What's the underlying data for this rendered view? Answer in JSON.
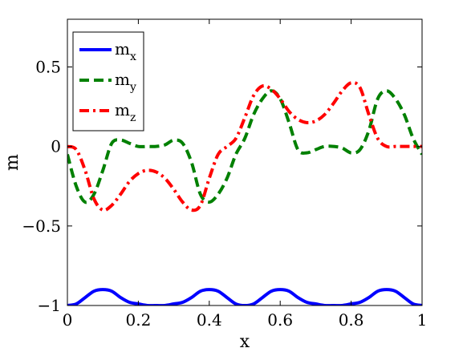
{
  "chart_data": {
    "type": "line",
    "xlabel": "x",
    "ylabel": "m",
    "xlim": [
      0,
      1
    ],
    "ylim": [
      -1,
      0.8
    ],
    "xticks": [
      0,
      0.2,
      0.4,
      0.6,
      0.8,
      1
    ],
    "xtick_labels": [
      "0",
      "0.2",
      "0.4",
      "0.6",
      "0.8",
      "1"
    ],
    "yticks": [
      -1,
      -0.5,
      0,
      0.5
    ],
    "ytick_labels": [
      "−1",
      "−0.5",
      "0",
      "0.5"
    ],
    "grid": false,
    "legend_position": "top-left",
    "series": [
      {
        "name": "m",
        "subscript": "x",
        "color": "#0000ff",
        "style": "solid",
        "x": [
          0,
          0.025,
          0.05,
          0.075,
          0.1,
          0.125,
          0.15,
          0.175,
          0.2,
          0.225,
          0.25,
          0.275,
          0.3,
          0.325,
          0.35,
          0.375,
          0.4,
          0.425,
          0.45,
          0.475,
          0.5,
          0.525,
          0.55,
          0.575,
          0.6,
          0.625,
          0.65,
          0.675,
          0.7,
          0.725,
          0.75,
          0.775,
          0.8,
          0.825,
          0.85,
          0.875,
          0.9,
          0.925,
          0.95,
          0.975,
          1
        ],
        "y": [
          -1,
          -0.99,
          -0.95,
          -0.91,
          -0.9,
          -0.91,
          -0.95,
          -0.98,
          -0.99,
          -1,
          -1,
          -1,
          -0.99,
          -0.98,
          -0.95,
          -0.91,
          -0.9,
          -0.91,
          -0.95,
          -0.99,
          -1,
          -0.99,
          -0.95,
          -0.91,
          -0.9,
          -0.91,
          -0.95,
          -0.98,
          -0.99,
          -1,
          -1,
          -1,
          -0.99,
          -0.98,
          -0.95,
          -0.91,
          -0.9,
          -0.91,
          -0.95,
          -0.99,
          -1
        ]
      },
      {
        "name": "m",
        "subscript": "y",
        "color": "#008000",
        "style": "dashed",
        "x": [
          0,
          0.025,
          0.05,
          0.075,
          0.1,
          0.125,
          0.15,
          0.175,
          0.2,
          0.225,
          0.25,
          0.275,
          0.3,
          0.325,
          0.35,
          0.375,
          0.4,
          0.425,
          0.45,
          0.475,
          0.5,
          0.525,
          0.55,
          0.575,
          0.6,
          0.625,
          0.65,
          0.675,
          0.7,
          0.725,
          0.75,
          0.775,
          0.8,
          0.825,
          0.85,
          0.875,
          0.9,
          0.925,
          0.95,
          0.975,
          1
        ],
        "y": [
          -0.05,
          -0.25,
          -0.35,
          -0.3,
          -0.15,
          0.02,
          0.04,
          0.02,
          0,
          0,
          0,
          0.01,
          0.04,
          0.02,
          -0.1,
          -0.3,
          -0.35,
          -0.3,
          -0.2,
          -0.05,
          0.05,
          0.2,
          0.3,
          0.35,
          0.3,
          0.15,
          -0.02,
          -0.04,
          -0.02,
          0,
          0,
          -0.01,
          -0.04,
          -0.02,
          0.1,
          0.3,
          0.35,
          0.3,
          0.2,
          0.05,
          -0.05
        ]
      },
      {
        "name": "m",
        "subscript": "z",
        "color": "#ff0000",
        "style": "dashdot",
        "x": [
          0,
          0.025,
          0.05,
          0.075,
          0.1,
          0.125,
          0.15,
          0.175,
          0.2,
          0.225,
          0.25,
          0.275,
          0.3,
          0.325,
          0.35,
          0.375,
          0.4,
          0.425,
          0.45,
          0.475,
          0.5,
          0.525,
          0.55,
          0.575,
          0.6,
          0.625,
          0.65,
          0.675,
          0.7,
          0.725,
          0.75,
          0.775,
          0.8,
          0.825,
          0.85,
          0.875,
          0.9,
          0.925,
          0.95,
          0.975,
          1
        ],
        "y": [
          0,
          -0.02,
          -0.15,
          -0.33,
          -0.4,
          -0.37,
          -0.3,
          -0.22,
          -0.17,
          -0.15,
          -0.16,
          -0.2,
          -0.27,
          -0.35,
          -0.4,
          -0.37,
          -0.2,
          -0.05,
          0,
          0.05,
          0.18,
          0.32,
          0.38,
          0.36,
          0.3,
          0.22,
          0.17,
          0.15,
          0.16,
          0.2,
          0.27,
          0.35,
          0.4,
          0.37,
          0.2,
          0.05,
          0,
          0,
          0,
          0,
          0
        ]
      }
    ]
  }
}
